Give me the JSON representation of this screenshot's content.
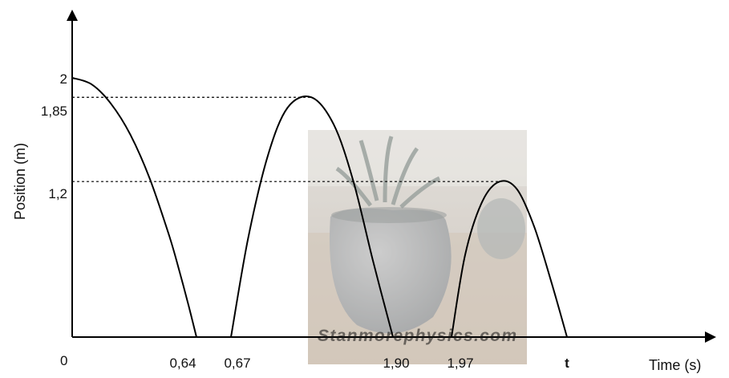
{
  "chart_data": {
    "type": "line",
    "xlabel": "Time (s)",
    "ylabel": "Position (m)",
    "origin_label": "0",
    "x_ticks": [
      "0,64",
      "0,67",
      "1,90",
      "1,97",
      "t"
    ],
    "y_ticks": [
      "1,2",
      "1,85",
      "2"
    ],
    "series": [
      {
        "x": [
          0.0,
          0.1,
          0.2,
          0.3,
          0.4,
          0.5,
          0.55,
          0.6,
          0.64
        ],
        "y": [
          2.0,
          1.95,
          1.8,
          1.56,
          1.22,
          0.78,
          0.52,
          0.24,
          0.0
        ]
      },
      {
        "x": [
          0.67,
          0.8,
          0.95,
          1.1,
          1.28,
          1.45,
          1.6,
          1.75,
          1.9
        ],
        "y": [
          0.0,
          0.76,
          1.4,
          1.77,
          1.85,
          1.64,
          1.2,
          0.58,
          0.0
        ]
      },
      {
        "x": [
          1.97,
          2.05,
          2.15,
          2.25,
          2.35,
          2.45,
          2.55,
          2.64
        ],
        "y": [
          0.0,
          0.64,
          1.05,
          1.2,
          1.14,
          0.85,
          0.42,
          0.0
        ]
      }
    ],
    "reference_lines": [
      {
        "y": 1.85,
        "style": "dashed"
      },
      {
        "y": 1.2,
        "style": "dashed"
      }
    ],
    "watermark": "Stanmorephysics.com",
    "grid": false,
    "legend": "none"
  }
}
